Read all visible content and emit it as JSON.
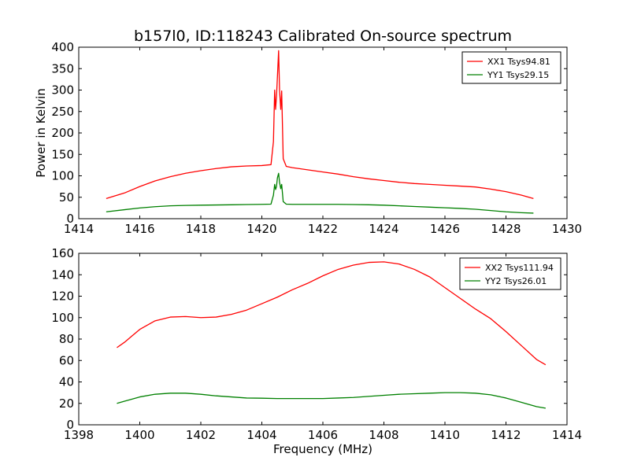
{
  "figure": {
    "title": "b157l0, ID:118243 Calibrated On-source spectrum",
    "ylabel": "Power in Kelvin",
    "xlabel": "Frequency (MHz)"
  },
  "chart_data": [
    {
      "type": "line",
      "title": "b157l0, ID:118243 Calibrated On-source spectrum",
      "xlabel": "",
      "ylabel": "Power in Kelvin",
      "xlim": [
        1414,
        1430
      ],
      "ylim": [
        0,
        400
      ],
      "xticks": [
        "1414",
        "1416",
        "1418",
        "1420",
        "1422",
        "1424",
        "1426",
        "1428",
        "1430"
      ],
      "yticks": [
        "0",
        "50",
        "100",
        "150",
        "200",
        "250",
        "300",
        "350",
        "400"
      ],
      "grid": false,
      "legend": "top-right",
      "series": [
        {
          "name": "XX1 Tsys94.81",
          "color": "#ff0000",
          "x": [
            1414.9,
            1415.5,
            1416.0,
            1416.5,
            1417.0,
            1417.5,
            1418.0,
            1418.5,
            1419.0,
            1419.5,
            1420.0,
            1420.3,
            1420.38,
            1420.42,
            1420.45,
            1420.48,
            1420.51,
            1420.55,
            1420.58,
            1420.62,
            1420.65,
            1420.7,
            1420.8,
            1421.0,
            1421.5,
            1422.0,
            1422.5,
            1423.0,
            1423.5,
            1424.0,
            1424.5,
            1425.0,
            1425.5,
            1426.0,
            1426.5,
            1427.0,
            1427.5,
            1428.0,
            1428.5,
            1428.9
          ],
          "y": [
            47,
            60,
            75,
            88,
            98,
            106,
            112,
            117,
            121,
            123,
            124,
            126,
            180,
            300,
            255,
            285,
            330,
            392,
            300,
            255,
            298,
            140,
            122,
            119,
            114,
            109,
            104,
            98,
            93,
            89,
            85,
            82,
            80,
            78,
            76,
            74,
            69,
            63,
            55,
            47
          ]
        },
        {
          "name": "YY1 Tsys29.15",
          "color": "#008000",
          "x": [
            1414.9,
            1415.5,
            1416.0,
            1416.5,
            1417.0,
            1417.5,
            1418.0,
            1418.5,
            1419.0,
            1419.5,
            1420.0,
            1420.3,
            1420.38,
            1420.42,
            1420.45,
            1420.48,
            1420.51,
            1420.55,
            1420.58,
            1420.62,
            1420.65,
            1420.7,
            1420.8,
            1421.0,
            1421.5,
            1422.0,
            1422.5,
            1423.0,
            1423.5,
            1424.0,
            1424.5,
            1425.0,
            1425.5,
            1426.0,
            1426.5,
            1427.0,
            1427.5,
            1428.0,
            1428.5,
            1428.9
          ],
          "y": [
            16,
            21,
            25,
            28,
            30,
            31,
            31.5,
            32,
            32.5,
            33,
            33.5,
            34,
            55,
            80,
            68,
            75,
            95,
            106,
            85,
            70,
            80,
            40,
            34,
            33.5,
            33.5,
            33.5,
            33.5,
            33,
            32.5,
            31.5,
            30,
            28.5,
            27,
            25.5,
            24,
            22,
            19,
            16,
            14,
            13
          ]
        }
      ]
    },
    {
      "type": "line",
      "title": "",
      "xlabel": "Frequency (MHz)",
      "ylabel": "",
      "xlim": [
        1398,
        1414
      ],
      "ylim": [
        0,
        160
      ],
      "xticks": [
        "1398",
        "1400",
        "1402",
        "1404",
        "1406",
        "1408",
        "1410",
        "1412",
        "1414"
      ],
      "yticks": [
        "0",
        "20",
        "40",
        "60",
        "80",
        "100",
        "120",
        "140",
        "160"
      ],
      "grid": false,
      "legend": "top-right",
      "series": [
        {
          "name": "XX2 Tsys111.94",
          "color": "#ff0000",
          "x": [
            1399.25,
            1399.5,
            1399.75,
            1400.0,
            1400.5,
            1401.0,
            1401.5,
            1402.0,
            1402.5,
            1403.0,
            1403.5,
            1404.0,
            1404.5,
            1405.0,
            1405.5,
            1406.0,
            1406.5,
            1407.0,
            1407.5,
            1408.0,
            1408.5,
            1409.0,
            1409.5,
            1410.0,
            1410.5,
            1411.0,
            1411.5,
            1412.0,
            1412.5,
            1413.0,
            1413.3
          ],
          "y": [
            72,
            77,
            83,
            89,
            97,
            100.5,
            101,
            100,
            100.5,
            103,
            107,
            113,
            119,
            126,
            132,
            139,
            145,
            149,
            151.5,
            152,
            150,
            145,
            138,
            128,
            118,
            108,
            99,
            87,
            74,
            61,
            56
          ]
        },
        {
          "name": "YY2 Tsys26.01",
          "color": "#008000",
          "x": [
            1399.25,
            1399.5,
            1400.0,
            1400.5,
            1401.0,
            1401.5,
            1402.0,
            1402.5,
            1403.0,
            1403.5,
            1404.0,
            1404.5,
            1405.0,
            1405.5,
            1406.0,
            1406.5,
            1407.0,
            1407.5,
            1408.0,
            1408.5,
            1409.0,
            1409.5,
            1410.0,
            1410.5,
            1411.0,
            1411.5,
            1412.0,
            1412.5,
            1413.0,
            1413.3
          ],
          "y": [
            20,
            22,
            26,
            28.5,
            29.5,
            29.5,
            28.5,
            27,
            26,
            25,
            24.8,
            24.5,
            24.5,
            24.5,
            24.5,
            25,
            25.5,
            26.5,
            27.5,
            28.5,
            29,
            29.5,
            30,
            30,
            29.5,
            28,
            25,
            21,
            17,
            15.5
          ]
        }
      ]
    }
  ]
}
